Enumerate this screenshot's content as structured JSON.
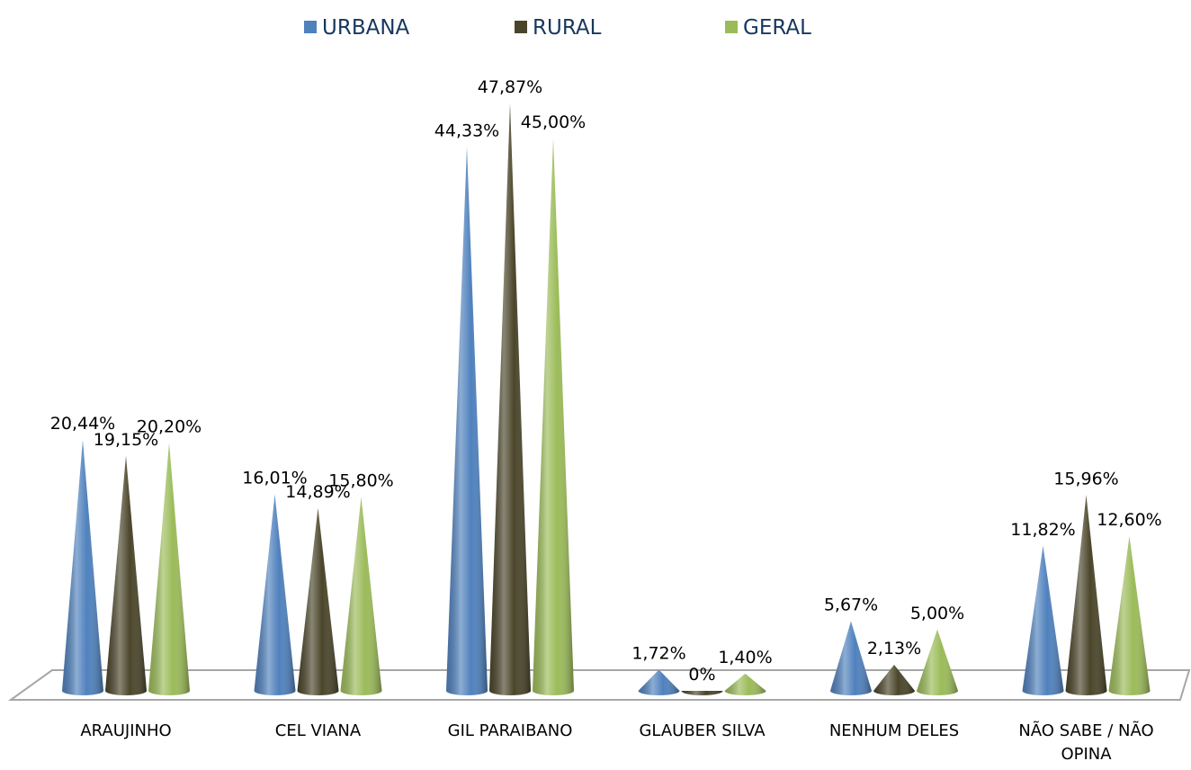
{
  "chart_data": {
    "type": "cone",
    "categories": [
      "ARAUJINHO",
      "CEL VIANA",
      "GIL PARAIBANO",
      "GLAUBER SILVA",
      "NENHUM DELES",
      "NÃO SABE / NÃO OPINA"
    ],
    "series": [
      {
        "name": "URBANA",
        "color": "#4f81bd",
        "values": [
          20.44,
          16.01,
          44.33,
          1.72,
          5.67,
          11.82
        ],
        "value_labels": [
          "20,44%",
          "16,01%",
          "44,33%",
          "1,72%",
          "5,67%",
          "11,82%"
        ]
      },
      {
        "name": "RURAL",
        "color": "#4a452a",
        "values": [
          19.15,
          14.89,
          47.87,
          0,
          2.13,
          15.96
        ],
        "value_labels": [
          "19,15%",
          "14,89%",
          "47,87%",
          "0%",
          "2,13%",
          "15,96%"
        ]
      },
      {
        "name": "GERAL",
        "color": "#9bbb59",
        "values": [
          20.2,
          15.8,
          45,
          1.4,
          5,
          12.6
        ],
        "value_labels": [
          "20,20%",
          "15,80%",
          "45,00%",
          "1,40%",
          "5,00%",
          "12,60%"
        ]
      }
    ],
    "legend": "top"
  }
}
